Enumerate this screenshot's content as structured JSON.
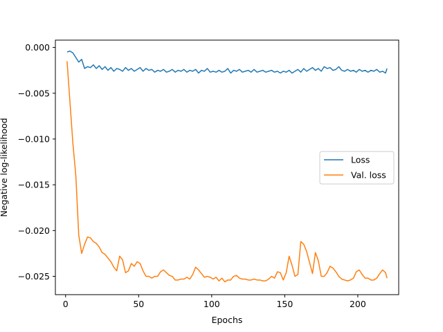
{
  "chart_data": {
    "type": "line",
    "title": "",
    "xlabel": "Epochs",
    "ylabel": "Negative log-likelihood",
    "xlim": [
      -7,
      228
    ],
    "ylim": [
      -0.027,
      0.0008
    ],
    "xticks": [
      0,
      50,
      100,
      150,
      200
    ],
    "xtick_labels": [
      "0",
      "50",
      "100",
      "150",
      "200"
    ],
    "yticks": [
      0.0,
      -0.005,
      -0.01,
      -0.015,
      -0.02,
      -0.025
    ],
    "ytick_labels": [
      "0.000",
      "−0.005",
      "−0.010",
      "−0.015",
      "−0.020",
      "−0.025"
    ],
    "grid": false,
    "legend_position": "center-right",
    "series": [
      {
        "name": "Loss",
        "color": "#1f77b4",
        "x": [
          1,
          3,
          5,
          7,
          9,
          11,
          13,
          15,
          17,
          19,
          21,
          23,
          25,
          27,
          29,
          31,
          33,
          35,
          37,
          39,
          41,
          43,
          45,
          47,
          49,
          51,
          53,
          55,
          57,
          59,
          61,
          63,
          65,
          67,
          69,
          71,
          73,
          75,
          77,
          79,
          81,
          83,
          85,
          87,
          89,
          91,
          93,
          95,
          97,
          99,
          101,
          103,
          105,
          107,
          109,
          111,
          113,
          115,
          117,
          119,
          121,
          123,
          125,
          127,
          129,
          131,
          133,
          135,
          137,
          139,
          141,
          143,
          145,
          147,
          149,
          151,
          153,
          155,
          157,
          159,
          161,
          163,
          165,
          167,
          169,
          171,
          173,
          175,
          177,
          179,
          181,
          183,
          185,
          187,
          189,
          191,
          193,
          195,
          197,
          199,
          201,
          203,
          205,
          207,
          209,
          211,
          213,
          215,
          217,
          219,
          220
        ],
        "y": [
          -0.0005,
          -0.0004,
          -0.0006,
          -0.0011,
          -0.0016,
          -0.0013,
          -0.0023,
          -0.0021,
          -0.0022,
          -0.0019,
          -0.0023,
          -0.002,
          -0.0024,
          -0.0021,
          -0.0025,
          -0.0022,
          -0.0026,
          -0.0023,
          -0.0024,
          -0.0026,
          -0.0022,
          -0.0025,
          -0.0023,
          -0.0026,
          -0.0024,
          -0.0022,
          -0.0026,
          -0.0023,
          -0.0025,
          -0.0024,
          -0.0027,
          -0.0025,
          -0.0026,
          -0.0024,
          -0.0027,
          -0.0026,
          -0.0024,
          -0.0027,
          -0.0025,
          -0.0026,
          -0.0024,
          -0.0027,
          -0.0025,
          -0.0026,
          -0.0024,
          -0.0028,
          -0.0025,
          -0.0026,
          -0.0023,
          -0.0027,
          -0.0026,
          -0.0027,
          -0.0025,
          -0.0027,
          -0.0026,
          -0.0023,
          -0.0028,
          -0.0025,
          -0.0026,
          -0.0024,
          -0.0027,
          -0.0026,
          -0.0025,
          -0.0027,
          -0.0024,
          -0.0027,
          -0.0026,
          -0.0025,
          -0.0027,
          -0.0026,
          -0.0025,
          -0.0027,
          -0.0026,
          -0.0028,
          -0.0026,
          -0.0027,
          -0.0025,
          -0.0028,
          -0.0026,
          -0.0024,
          -0.0027,
          -0.0023,
          -0.0026,
          -0.0024,
          -0.0022,
          -0.0025,
          -0.0023,
          -0.0026,
          -0.0021,
          -0.0023,
          -0.0022,
          -0.0025,
          -0.0024,
          -0.0021,
          -0.0025,
          -0.0026,
          -0.0024,
          -0.0026,
          -0.0025,
          -0.0027,
          -0.0024,
          -0.0026,
          -0.0025,
          -0.0027,
          -0.0025,
          -0.0026,
          -0.0024,
          -0.0027,
          -0.0026,
          -0.0028,
          -0.0023
        ]
      },
      {
        "name": "Val. loss",
        "color": "#ff7f0e",
        "x": [
          1,
          3,
          5,
          7,
          9,
          11,
          13,
          15,
          17,
          19,
          21,
          23,
          25,
          27,
          29,
          31,
          33,
          35,
          37,
          39,
          41,
          43,
          45,
          47,
          49,
          51,
          53,
          55,
          57,
          59,
          61,
          63,
          65,
          67,
          69,
          71,
          73,
          75,
          77,
          79,
          81,
          83,
          85,
          87,
          89,
          91,
          93,
          95,
          97,
          99,
          101,
          103,
          105,
          107,
          109,
          111,
          113,
          115,
          117,
          119,
          121,
          123,
          125,
          127,
          129,
          131,
          133,
          135,
          137,
          139,
          141,
          143,
          145,
          147,
          149,
          151,
          153,
          155,
          157,
          159,
          161,
          163,
          165,
          167,
          169,
          171,
          173,
          175,
          177,
          179,
          181,
          183,
          185,
          187,
          189,
          191,
          193,
          195,
          197,
          199,
          201,
          203,
          205,
          207,
          209,
          211,
          213,
          215,
          217,
          219,
          220
        ],
        "y": [
          -0.0015,
          -0.006,
          -0.0105,
          -0.014,
          -0.0205,
          -0.0225,
          -0.0215,
          -0.0207,
          -0.0208,
          -0.0212,
          -0.0214,
          -0.0218,
          -0.0224,
          -0.0226,
          -0.023,
          -0.0234,
          -0.024,
          -0.0244,
          -0.0228,
          -0.0232,
          -0.0246,
          -0.0244,
          -0.0236,
          -0.0239,
          -0.0234,
          -0.0236,
          -0.0244,
          -0.025,
          -0.025,
          -0.0252,
          -0.025,
          -0.025,
          -0.0245,
          -0.0243,
          -0.0246,
          -0.0249,
          -0.025,
          -0.0254,
          -0.0254,
          -0.0253,
          -0.0253,
          -0.0251,
          -0.0253,
          -0.0248,
          -0.024,
          -0.0243,
          -0.0247,
          -0.0251,
          -0.025,
          -0.0251,
          -0.0253,
          -0.0251,
          -0.0255,
          -0.0252,
          -0.0256,
          -0.0254,
          -0.0254,
          -0.025,
          -0.0249,
          -0.0252,
          -0.0253,
          -0.0253,
          -0.0254,
          -0.0254,
          -0.0253,
          -0.0254,
          -0.0254,
          -0.0255,
          -0.0255,
          -0.0253,
          -0.025,
          -0.0252,
          -0.0245,
          -0.0246,
          -0.0254,
          -0.0246,
          -0.0228,
          -0.0238,
          -0.025,
          -0.0248,
          -0.0212,
          -0.0215,
          -0.0223,
          -0.0235,
          -0.0247,
          -0.0224,
          -0.0233,
          -0.025,
          -0.025,
          -0.0246,
          -0.0239,
          -0.0241,
          -0.0245,
          -0.025,
          -0.0253,
          -0.0254,
          -0.0255,
          -0.0254,
          -0.0252,
          -0.0245,
          -0.0243,
          -0.0248,
          -0.0252,
          -0.0252,
          -0.0254,
          -0.0254,
          -0.0252,
          -0.0247,
          -0.0243,
          -0.0246,
          -0.0252
        ]
      }
    ]
  }
}
